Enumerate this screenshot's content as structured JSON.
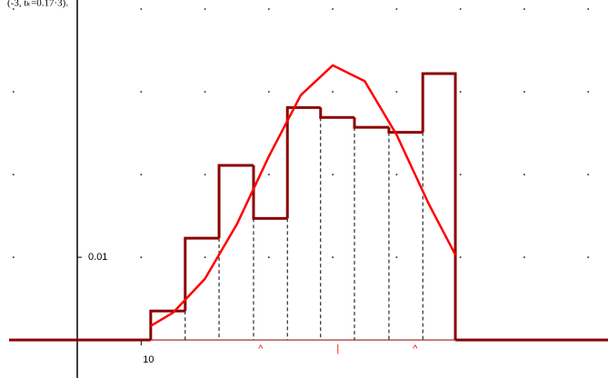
{
  "chart_data": {
    "type": "histogram",
    "title": "(-3, tₖ=0.17·3).",
    "bins": [
      11.5,
      16.9,
      22.2,
      27.6,
      32.9,
      38.1,
      43.4,
      48.8,
      54.1,
      59.2
    ],
    "values": [
      0.0035,
      0.0123,
      0.0211,
      0.0147,
      0.0281,
      0.0269,
      0.0257,
      0.0251,
      0.0322
    ],
    "color": "#8b0000",
    "curve": {
      "color": "#ff0000",
      "x": [
        11.5,
        15,
        20,
        25,
        30,
        35,
        40,
        45,
        50,
        55,
        59.2
      ],
      "values": [
        0.0017,
        0.0033,
        0.0074,
        0.014,
        0.0222,
        0.0296,
        0.0332,
        0.0313,
        0.0248,
        0.0165,
        0.0103
      ]
    },
    "markers": [
      {
        "label": "^",
        "x": 28.7
      },
      {
        "label": "|",
        "x": 40.8
      },
      {
        "label": "^",
        "x": 52.9
      }
    ],
    "xlim": [
      -12.1,
      83.1
    ],
    "ylim": [
      -0.0046,
      0.0411
    ],
    "xticks": [
      10
    ],
    "yticks": [
      0.01
    ],
    "xgrid": [
      -10,
      10,
      20,
      30,
      40,
      50,
      60,
      70,
      80
    ],
    "ygrid": [
      0.01,
      0.02,
      0.03,
      0.04
    ],
    "grid": true
  }
}
